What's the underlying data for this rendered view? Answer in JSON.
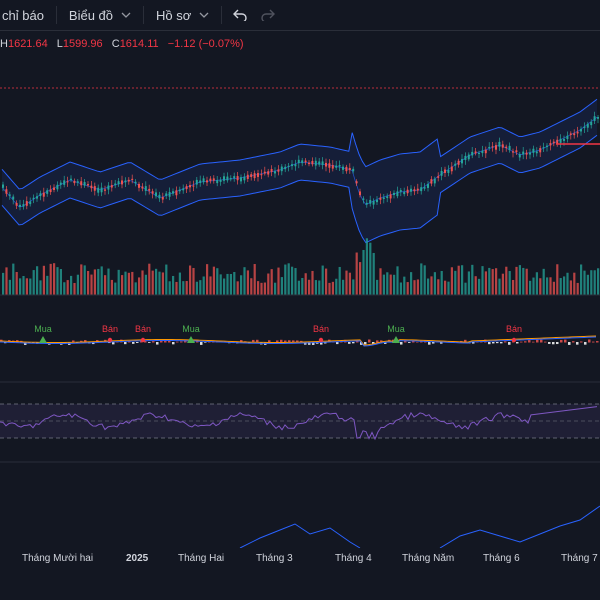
{
  "toolbar": {
    "indicators_label": "chỉ báo",
    "chart_label": "Biểu đồ",
    "profile_label": "Hồ sơ"
  },
  "ohlc": {
    "h_key": "H",
    "h_val": "1621.64",
    "l_key": "L",
    "l_val": "1599.96",
    "c_key": "C",
    "c_val": "1614.11",
    "change": "−1.12 (−0.07%)"
  },
  "signals": [
    {
      "label": "Mua",
      "type": "buy"
    },
    {
      "label": "Bán",
      "type": "sell"
    },
    {
      "label": "Bán",
      "type": "sell"
    },
    {
      "label": "Mua",
      "type": "buy"
    },
    {
      "label": "Bán",
      "type": "sell"
    },
    {
      "label": "Mua",
      "type": "buy"
    },
    {
      "label": "Bán",
      "type": "sell"
    }
  ],
  "xaxis": [
    {
      "label": "Tháng Mười hai",
      "bold": false
    },
    {
      "label": "2025",
      "bold": true
    },
    {
      "label": "Tháng Hai",
      "bold": false
    },
    {
      "label": "Tháng 3",
      "bold": false
    },
    {
      "label": "Tháng 4",
      "bold": false
    },
    {
      "label": "Tháng Năm",
      "bold": false
    },
    {
      "label": "Tháng 6",
      "bold": false
    },
    {
      "label": "Tháng 7",
      "bold": false
    }
  ],
  "colors": {
    "up": "#26a69a",
    "down": "#ef5350",
    "band": "#2962ff",
    "rsi": "#7e57c2",
    "buy": "#4caf50",
    "sell": "#f23645"
  }
}
